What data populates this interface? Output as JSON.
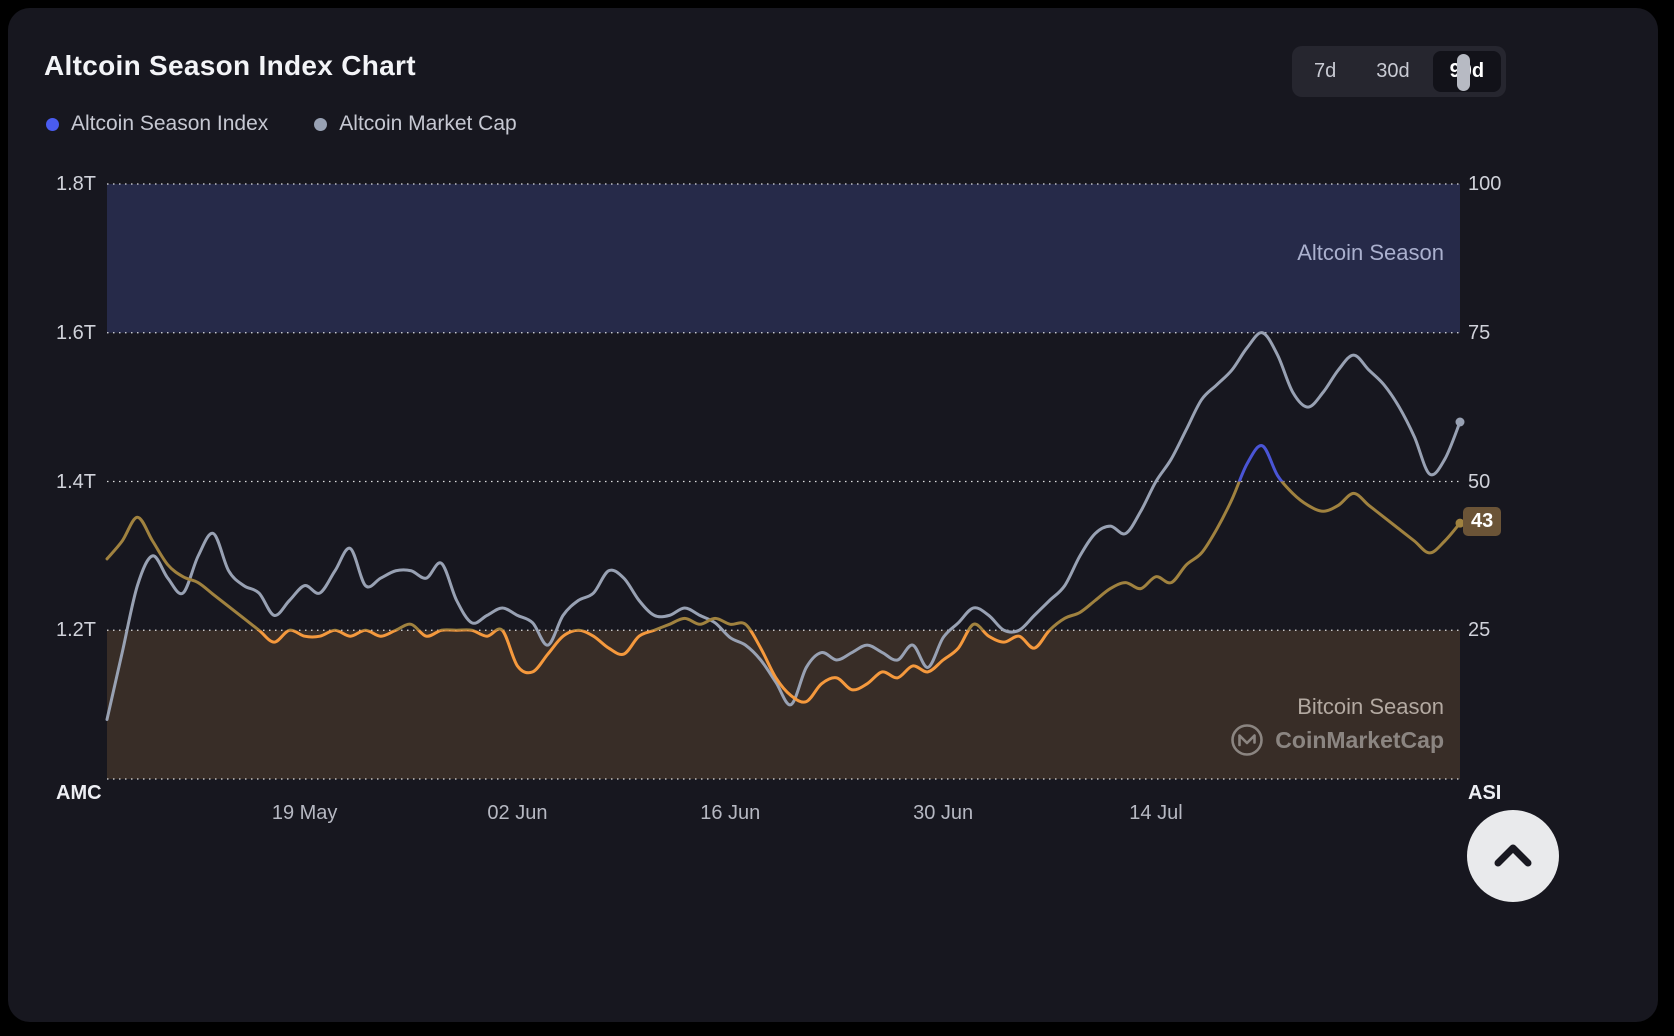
{
  "page": {
    "background": "#000000",
    "card_background": "#17171f"
  },
  "header": {
    "title": "Altcoin Season Index Chart"
  },
  "range_selector": {
    "options": [
      {
        "label": "7d",
        "selected": false
      },
      {
        "label": "30d",
        "selected": false
      },
      {
        "label": "90d",
        "selected": true
      }
    ]
  },
  "legend": {
    "items": [
      {
        "label": "Altcoin Season Index",
        "color": "#4a5cf0"
      },
      {
        "label": "Altcoin Market Cap",
        "color": "#98a1b3"
      }
    ]
  },
  "chart_data": {
    "type": "line",
    "title": "Altcoin Season Index Chart",
    "x": {
      "tick_labels": [
        "19 May",
        "02 Jun",
        "16 Jun",
        "30 Jun",
        "14 Jul"
      ],
      "tick_days": [
        13,
        27,
        41,
        55,
        69
      ],
      "total_days": 89
    },
    "left_axis": {
      "label": "AMC",
      "tick_labels": [
        "1.8T",
        "1.6T",
        "1.4T",
        "1.2T"
      ],
      "tick_values": [
        1.8,
        1.6,
        1.4,
        1.2
      ],
      "range": [
        1.0,
        1.8
      ]
    },
    "right_axis": {
      "label": "ASI",
      "tick_labels": [
        "100",
        "75",
        "50",
        "25"
      ],
      "tick_values": [
        100,
        75,
        50,
        25
      ],
      "range": [
        0,
        100
      ],
      "gridlines": [
        100,
        75,
        50,
        25,
        0
      ]
    },
    "bands": [
      {
        "label": "Altcoin Season",
        "from": 75,
        "to": 100,
        "color": "#262a49"
      },
      {
        "label": "Bitcoin Season",
        "from": 0,
        "to": 25,
        "color": "#382d27"
      }
    ],
    "current_value": {
      "value": 43,
      "badge_color": "#6b5437"
    },
    "series": [
      {
        "name": "Altcoin Market Cap",
        "axis": "left",
        "color": "#98a1b3",
        "values": [
          1.08,
          1.17,
          1.26,
          1.3,
          1.27,
          1.25,
          1.3,
          1.33,
          1.28,
          1.26,
          1.25,
          1.22,
          1.24,
          1.26,
          1.25,
          1.28,
          1.31,
          1.26,
          1.27,
          1.28,
          1.28,
          1.27,
          1.29,
          1.24,
          1.21,
          1.22,
          1.23,
          1.22,
          1.21,
          1.18,
          1.22,
          1.24,
          1.25,
          1.28,
          1.27,
          1.24,
          1.22,
          1.22,
          1.23,
          1.22,
          1.21,
          1.19,
          1.18,
          1.16,
          1.13,
          1.1,
          1.15,
          1.17,
          1.16,
          1.17,
          1.18,
          1.17,
          1.16,
          1.18,
          1.15,
          1.19,
          1.21,
          1.23,
          1.22,
          1.2,
          1.2,
          1.22,
          1.24,
          1.26,
          1.3,
          1.33,
          1.34,
          1.33,
          1.36,
          1.4,
          1.43,
          1.47,
          1.51,
          1.53,
          1.55,
          1.58,
          1.6,
          1.57,
          1.52,
          1.5,
          1.52,
          1.55,
          1.57,
          1.55,
          1.53,
          1.5,
          1.46,
          1.41,
          1.43,
          1.48
        ]
      },
      {
        "name": "Altcoin Season Index",
        "axis": "right",
        "segment_colors": {
          "below_25": "#f5993d",
          "mid": "#a0823f",
          "above_50": "#4a55d6"
        },
        "thresholds": {
          "bitcoin_season": 25,
          "altcoin_lean": 50
        },
        "values": [
          37,
          40,
          44,
          40,
          36,
          34,
          33,
          31,
          29,
          27,
          25,
          23,
          25,
          24,
          24,
          25,
          24,
          25,
          24,
          25,
          26,
          24,
          25,
          25,
          25,
          24,
          25,
          19,
          18,
          21,
          24,
          25,
          24,
          22,
          21,
          24,
          25,
          26,
          27,
          26,
          27,
          26,
          26,
          22,
          17,
          14,
          13,
          16,
          17,
          15,
          16,
          18,
          17,
          19,
          18,
          20,
          22,
          26,
          24,
          23,
          24,
          22,
          25,
          27,
          28,
          30,
          32,
          33,
          32,
          34,
          33,
          36,
          38,
          42,
          47,
          53,
          56,
          51,
          48,
          46,
          45,
          46,
          48,
          46,
          44,
          42,
          40,
          38,
          40,
          43
        ]
      }
    ]
  },
  "watermark": {
    "label": "CoinMarketCap"
  }
}
